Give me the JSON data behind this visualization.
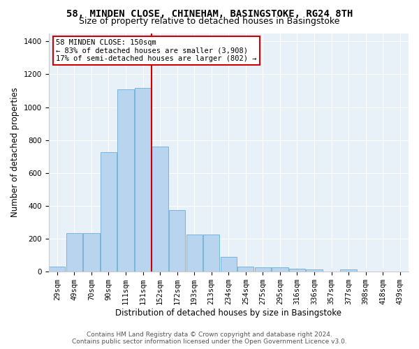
{
  "title": "58, MINDEN CLOSE, CHINEHAM, BASINGSTOKE, RG24 8TH",
  "subtitle": "Size of property relative to detached houses in Basingstoke",
  "xlabel": "Distribution of detached houses by size in Basingstoke",
  "ylabel": "Number of detached properties",
  "bar_labels": [
    "29sqm",
    "49sqm",
    "70sqm",
    "90sqm",
    "111sqm",
    "131sqm",
    "152sqm",
    "172sqm",
    "193sqm",
    "213sqm",
    "234sqm",
    "254sqm",
    "275sqm",
    "295sqm",
    "316sqm",
    "336sqm",
    "357sqm",
    "377sqm",
    "398sqm",
    "418sqm",
    "439sqm"
  ],
  "bar_heights": [
    30,
    235,
    235,
    725,
    1110,
    1115,
    760,
    375,
    225,
    225,
    90,
    32,
    27,
    27,
    18,
    12,
    0,
    12,
    0,
    0,
    0
  ],
  "bar_color": "#b8d4ee",
  "bar_edge_color": "#6aaed6",
  "vline_idx": 5.5,
  "vline_color": "#cc0000",
  "annotation_text": "58 MINDEN CLOSE: 150sqm\n← 83% of detached houses are smaller (3,908)\n17% of semi-detached houses are larger (802) →",
  "annotation_box_color": "white",
  "annotation_box_edge": "#cc0000",
  "ylim": [
    0,
    1450
  ],
  "yticks": [
    0,
    200,
    400,
    600,
    800,
    1000,
    1200,
    1400
  ],
  "bg_color": "#e8f0f8",
  "grid_color": "#ffffff",
  "title_fontsize": 10,
  "subtitle_fontsize": 9,
  "axis_label_fontsize": 8.5,
  "tick_fontsize": 7.5,
  "footer_fontsize": 6.5,
  "ann_fontsize": 7.5,
  "footer1": "Contains HM Land Registry data © Crown copyright and database right 2024.",
  "footer2": "Contains public sector information licensed under the Open Government Licence v3.0."
}
